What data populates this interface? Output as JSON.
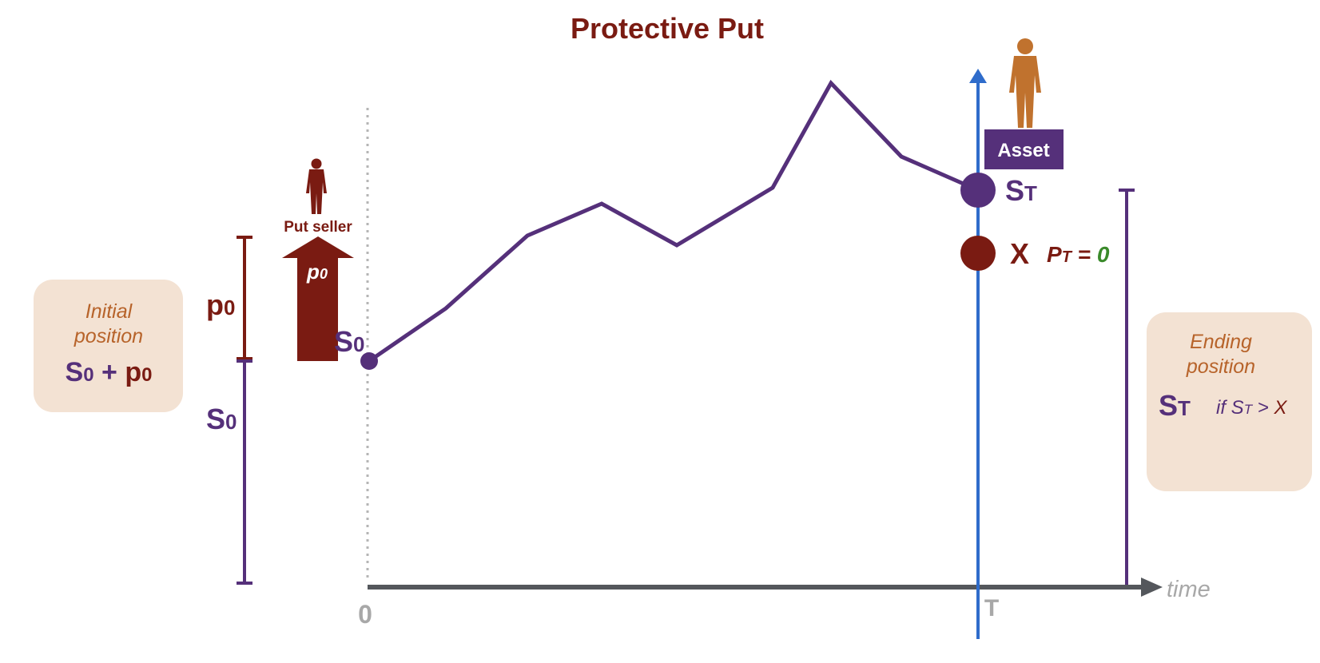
{
  "title": "Protective Put",
  "initial_box": {
    "label_line1": "Initial",
    "label_line2": "position",
    "formula_S": "S",
    "formula_S_sub": "0",
    "formula_plus": " + ",
    "formula_p": "p",
    "formula_p_sub": "0"
  },
  "ending_box": {
    "label_line1": "Ending",
    "label_line2": "position",
    "value": "S",
    "value_sub": "T",
    "condition_prefix": "if ",
    "condition_S": "S",
    "condition_S_sub": "T",
    "condition_gt": " > ",
    "condition_X": "X"
  },
  "left_bracket": {
    "p_label": "p",
    "p_sub": "0",
    "s_label": "S",
    "s_sub": "0"
  },
  "put_seller": {
    "label": "Put seller",
    "arrow_label": "p",
    "arrow_label_sub": "0"
  },
  "asset_label": "Asset",
  "start_point": {
    "label": "S",
    "sub": "0"
  },
  "end_point": {
    "label": "S",
    "sub": "T"
  },
  "strike": {
    "label": "X"
  },
  "put_value": {
    "P": "P",
    "P_sub": "T",
    "equals": " = ",
    "zero": "0"
  },
  "axis": {
    "origin": "0",
    "maturity": "T",
    "time": "time"
  },
  "colors": {
    "purple": "#55307a",
    "dark_red": "#7a1b12",
    "blue": "#2f6ccb",
    "orange": "#c0722e",
    "box_bg": "#f3e2d3",
    "green": "#3a8a2a",
    "axis": "#54575c"
  },
  "icons": [
    "person-silhouette-icon",
    "arrow-up-icon"
  ]
}
